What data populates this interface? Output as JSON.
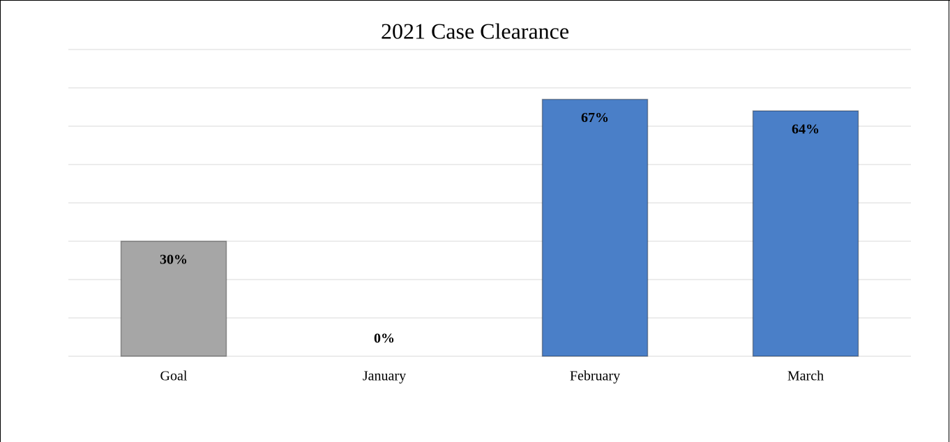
{
  "chart_data": {
    "type": "bar",
    "title": "2021 Case Clearance",
    "categories": [
      "Goal",
      "January",
      "February",
      "March"
    ],
    "values": [
      30,
      0,
      67,
      64
    ],
    "value_labels": [
      "30%",
      "0%",
      "67%",
      "64%"
    ],
    "colors": [
      "#a6a6a6",
      "#4a7fc8",
      "#4a7fc8",
      "#4a7fc8"
    ],
    "ylim": [
      0,
      80
    ],
    "yticks": [
      0,
      10,
      20,
      30,
      40,
      50,
      60,
      70,
      80
    ],
    "grid": true
  }
}
